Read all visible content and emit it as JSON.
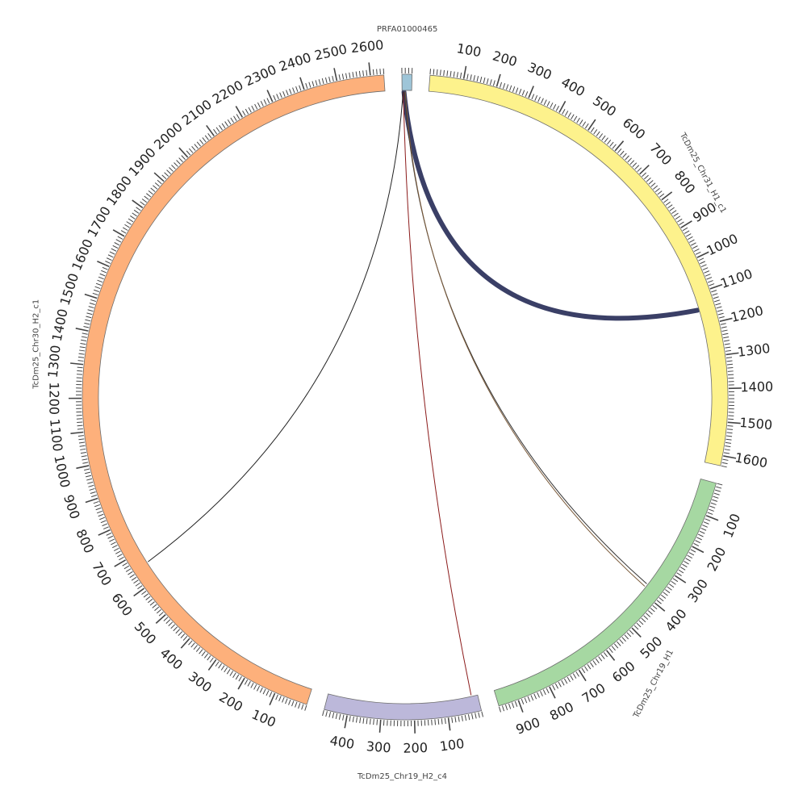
{
  "plot": {
    "type": "circos",
    "unit_per_label": 100,
    "segments": [
      {
        "id": "prfa",
        "label": "PRFA01000465",
        "length": 30,
        "color": "#9ec5d8",
        "tick_labels": []
      },
      {
        "id": "chr31",
        "label": "TcDm25_Chr31_H1_c1",
        "length": 1630,
        "color": "#fdf28c",
        "tick_labels": [
          "100",
          "200",
          "300",
          "400",
          "500",
          "600",
          "700",
          "800",
          "900",
          "1000",
          "1100",
          "1200",
          "1300",
          "1400",
          "1500",
          "1600"
        ]
      },
      {
        "id": "chr19h1",
        "label": "TcDm25_Chr19_H1",
        "length": 960,
        "color": "#a6d8a2",
        "tick_labels": [
          "100",
          "200",
          "300",
          "400",
          "500",
          "600",
          "700",
          "800",
          "900"
        ]
      },
      {
        "id": "chr19h2",
        "label": "TcDm25_Chr19_H2_c4",
        "length": 470,
        "color": "#bcb8da",
        "tick_labels": [
          "100",
          "200",
          "300",
          "400"
        ]
      },
      {
        "id": "chr30",
        "label": "TcDm25_Chr30_H2_c1",
        "length": 2640,
        "color": "#fdb07b",
        "tick_labels": [
          "100",
          "200",
          "300",
          "400",
          "500",
          "600",
          "700",
          "800",
          "900",
          "1000",
          "1100",
          "1200",
          "1300",
          "1400",
          "1500",
          "1600",
          "1700",
          "1800",
          "1900",
          "2000",
          "2100",
          "2200",
          "2300",
          "2400",
          "2500",
          "2600"
        ]
      }
    ],
    "links": [
      {
        "from": "prfa",
        "from_pos": 6,
        "to": "chr31",
        "to_pos": 1150,
        "color": "#3a3f66",
        "width": 6
      },
      {
        "from": "prfa",
        "from_pos": 8,
        "to": "chr19h1",
        "to_pos": 370,
        "color": "#333333",
        "width": 1
      },
      {
        "from": "prfa",
        "from_pos": 10,
        "to": "chr19h1",
        "to_pos": 380,
        "color": "#7a5a3a",
        "width": 1
      },
      {
        "from": "prfa",
        "from_pos": 4,
        "to": "chr19h2",
        "to_pos": 20,
        "color": "#8b1a1a",
        "width": 1
      },
      {
        "from": "prfa",
        "from_pos": 3,
        "to": "chr30",
        "to_pos": 660,
        "color": "#222222",
        "width": 1
      }
    ]
  }
}
